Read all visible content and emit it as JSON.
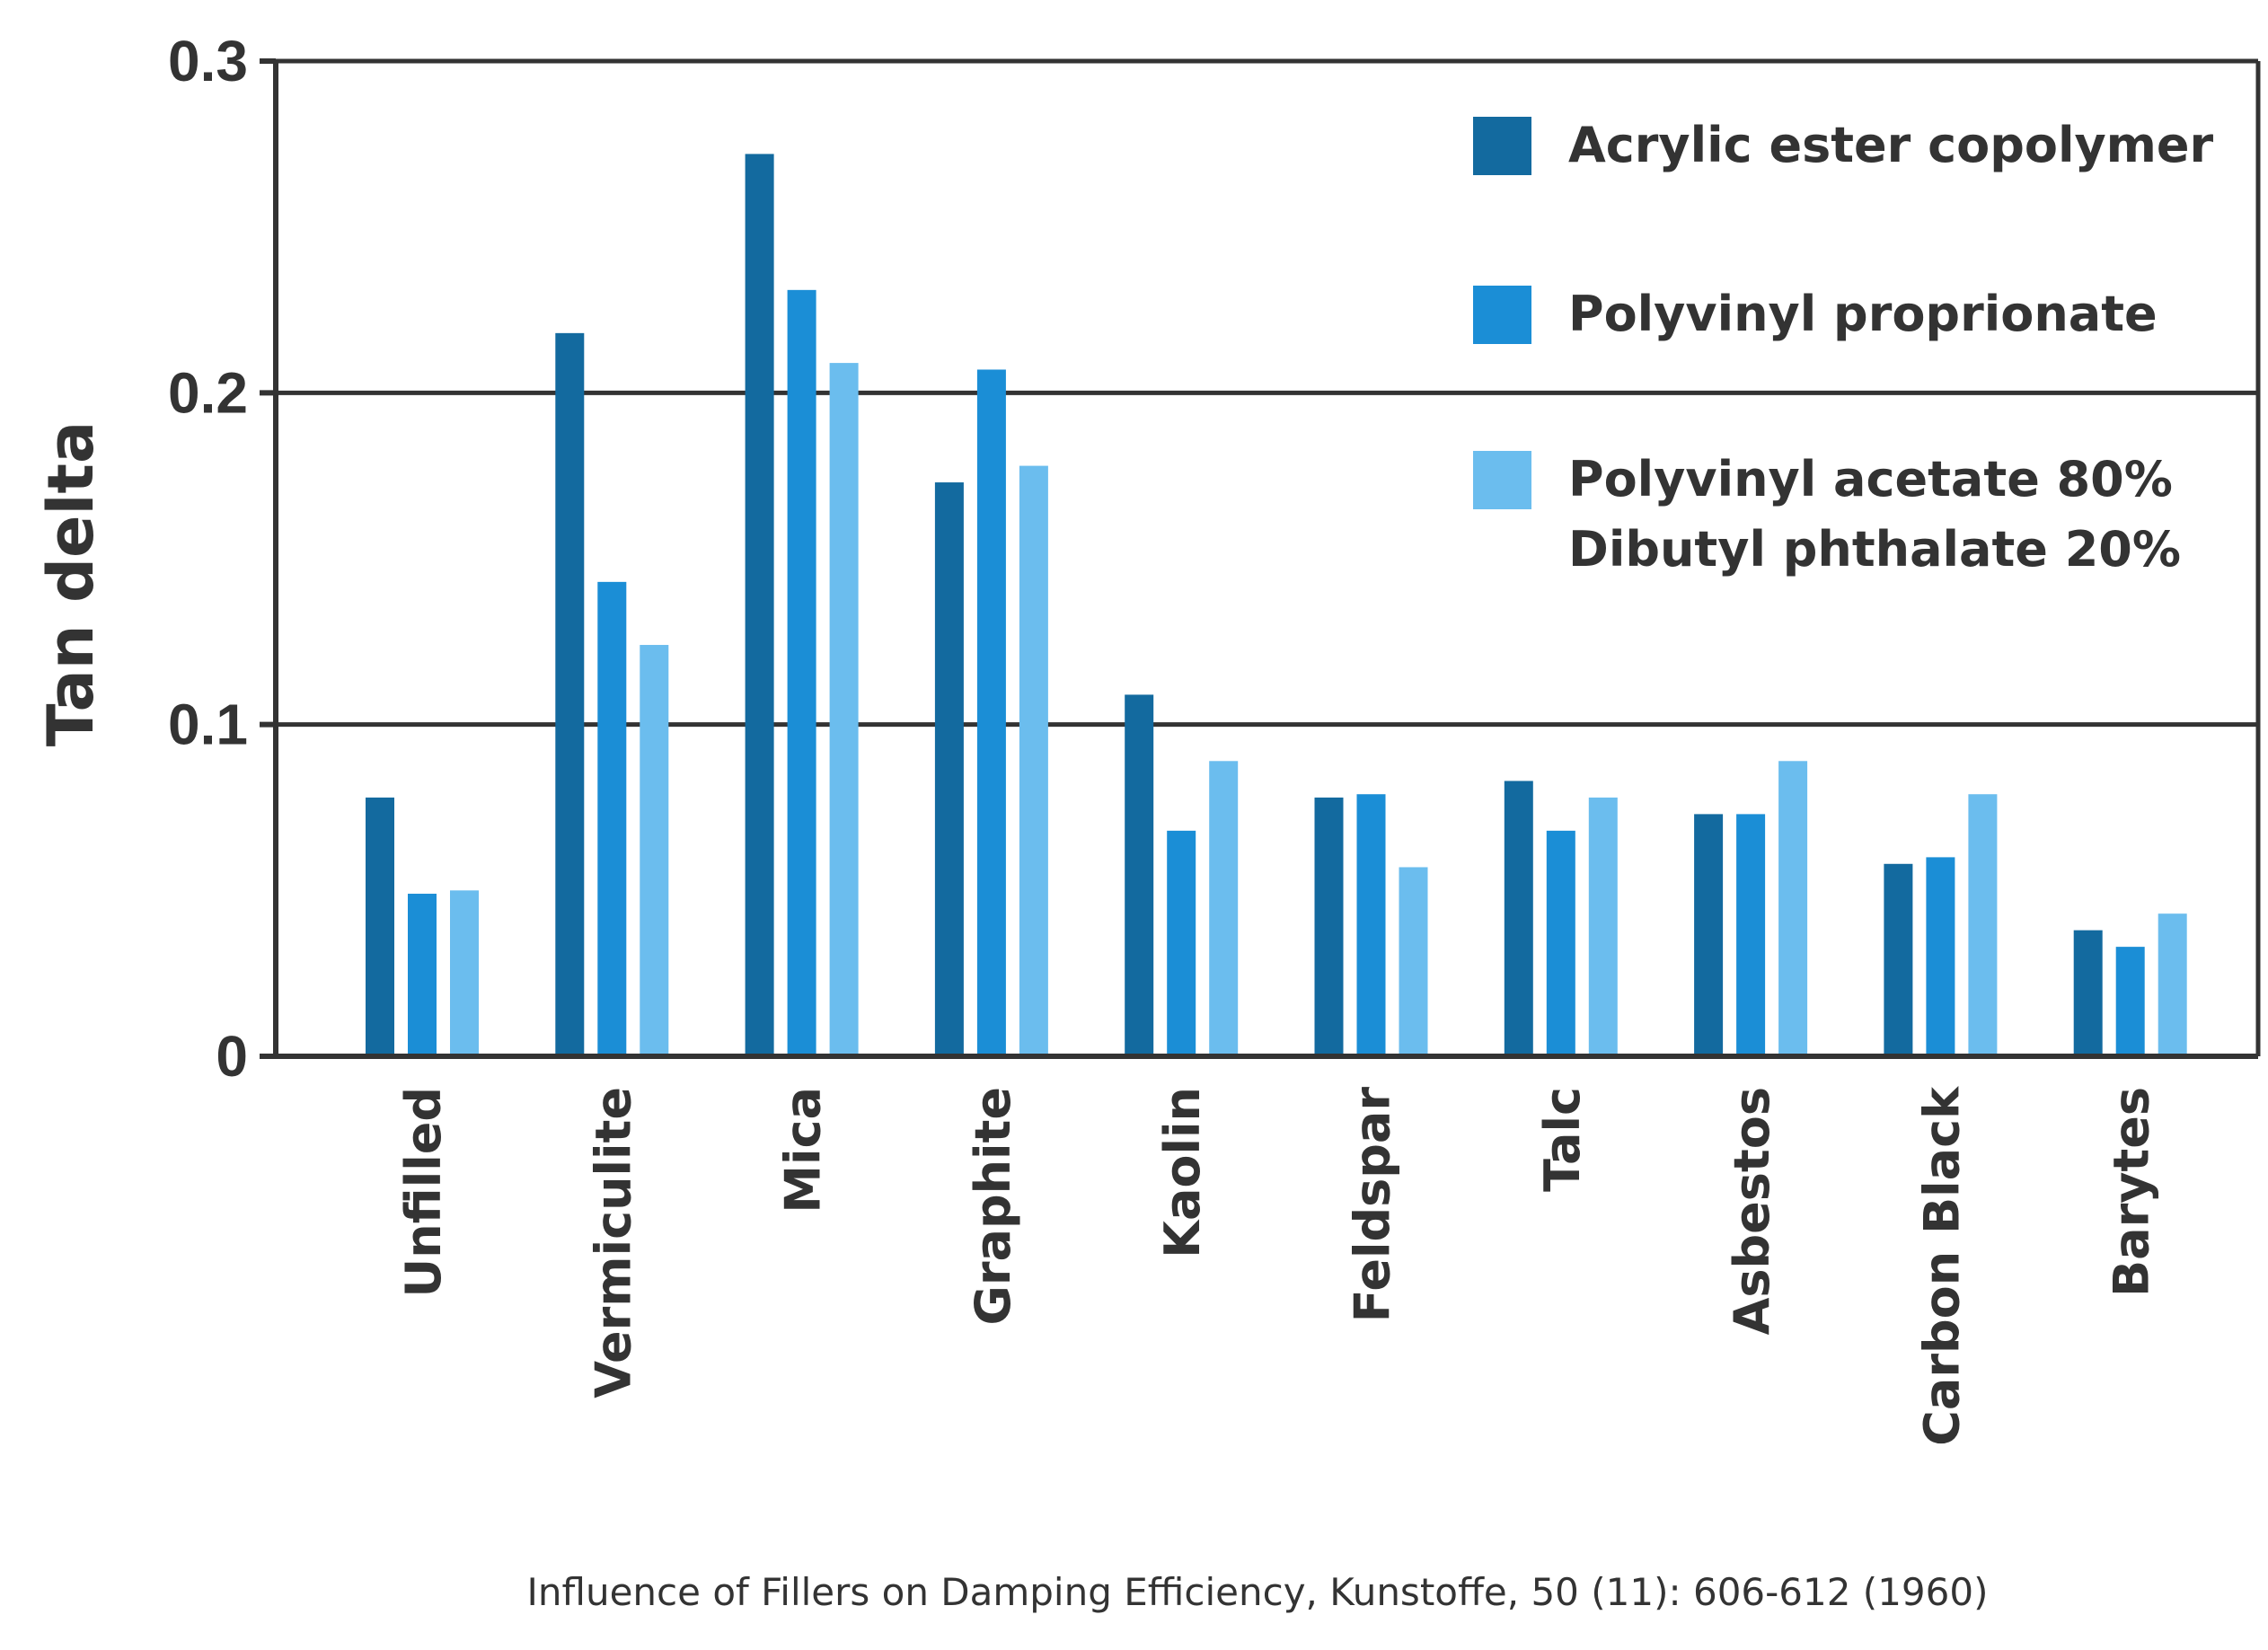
{
  "chart_data": {
    "type": "bar",
    "title": "",
    "xlabel": "",
    "ylabel": "Tan delta",
    "ylim": [
      0,
      0.3
    ],
    "yticks": [
      {
        "value": 0,
        "label": "0"
      },
      {
        "value": 0.1,
        "label": "0.1"
      },
      {
        "value": 0.2,
        "label": "0.2"
      },
      {
        "value": 0.3,
        "label": "0.3"
      }
    ],
    "grid": "horizontal at 0.1 and 0.2",
    "legend_position": "top-right",
    "categories": [
      "Unfilled",
      "Vermiculite",
      "Mica",
      "Graphite",
      "Kaolin",
      "Feldspar",
      "Talc",
      "Asbestos",
      "Carbon Black",
      "Barytes"
    ],
    "series": [
      {
        "name": "Acrylic ester copolymer",
        "color": "#136a9f",
        "values": [
          0.078,
          0.218,
          0.272,
          0.173,
          0.109,
          0.078,
          0.083,
          0.073,
          0.058,
          0.038
        ]
      },
      {
        "name": "Polyvinyl proprionate",
        "color": "#1b8ed6",
        "values": [
          0.049,
          0.143,
          0.231,
          0.207,
          0.068,
          0.079,
          0.068,
          0.073,
          0.06,
          0.033
        ]
      },
      {
        "name": "Polyvinyl acetate 80%",
        "name_line2": "Dibutyl phthalate 20%",
        "color": "#6bbdee",
        "values": [
          0.05,
          0.124,
          0.209,
          0.178,
          0.089,
          0.057,
          0.078,
          0.089,
          0.079,
          0.043
        ]
      }
    ],
    "source_note": "Influence of Fillers on Damping Efficiency, Kunstoffe, 50 (11): 606-612 (1960)"
  }
}
